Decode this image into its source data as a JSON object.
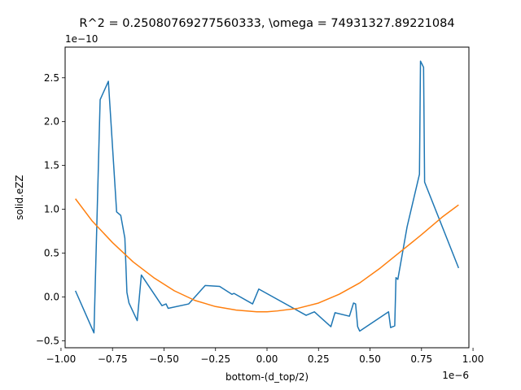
{
  "chart_data": {
    "type": "line",
    "title": "R^2 = 0.25080769277560333, \\omega = 74931327.89221084",
    "xlabel": "bottom-(d_top/2)",
    "ylabel": "solid.eZZ",
    "x_offset_label": "1e−6",
    "y_offset_label": "1e−10",
    "xlim": [
      -0.98,
      0.98
    ],
    "ylim": [
      -0.58,
      2.85
    ],
    "xticks": [
      -1.0,
      -0.75,
      -0.5,
      -0.25,
      0.0,
      0.25,
      0.5,
      0.75,
      1.0
    ],
    "xtick_labels": [
      "−1.00",
      "−0.75",
      "−0.50",
      "−0.25",
      "0.00",
      "0.25",
      "0.50",
      "0.75",
      "1.00"
    ],
    "yticks": [
      -0.5,
      0.0,
      0.5,
      1.0,
      1.5,
      2.0,
      2.5
    ],
    "ytick_labels": [
      "−0.5",
      "0.0",
      "0.5",
      "1.0",
      "1.5",
      "2.0",
      "2.5"
    ],
    "grid": false,
    "series": [
      {
        "color": "#1f77b4",
        "x": [
          -0.93,
          -0.84,
          -0.81,
          -0.77,
          -0.73,
          -0.71,
          -0.69,
          -0.68,
          -0.67,
          -0.63,
          -0.61,
          -0.51,
          -0.49,
          -0.48,
          -0.38,
          -0.3,
          -0.23,
          -0.17,
          -0.16,
          -0.07,
          -0.04,
          0.19,
          0.23,
          0.31,
          0.33,
          0.4,
          0.42,
          0.43,
          0.44,
          0.45,
          0.59,
          0.6,
          0.62,
          0.626,
          0.635,
          0.68,
          0.74,
          0.745,
          0.76,
          0.765,
          0.93
        ],
        "y": [
          0.07,
          -0.41,
          2.25,
          2.46,
          0.97,
          0.93,
          0.67,
          0.05,
          -0.07,
          -0.27,
          0.25,
          -0.1,
          -0.08,
          -0.13,
          -0.08,
          0.13,
          0.12,
          0.03,
          0.04,
          -0.08,
          0.09,
          -0.21,
          -0.17,
          -0.34,
          -0.18,
          -0.22,
          -0.07,
          -0.08,
          -0.34,
          -0.39,
          -0.17,
          -0.35,
          -0.33,
          0.22,
          0.2,
          0.8,
          1.4,
          2.69,
          2.62,
          1.31,
          0.33
        ]
      },
      {
        "color": "#ff7f0e",
        "x": [
          -0.93,
          -0.85,
          -0.75,
          -0.65,
          -0.55,
          -0.45,
          -0.35,
          -0.25,
          -0.15,
          -0.05,
          0.0,
          0.05,
          0.15,
          0.25,
          0.35,
          0.45,
          0.55,
          0.65,
          0.75,
          0.85,
          0.93
        ],
        "y": [
          1.12,
          0.87,
          0.62,
          0.4,
          0.22,
          0.07,
          -0.04,
          -0.11,
          -0.15,
          -0.17,
          -0.17,
          -0.16,
          -0.13,
          -0.07,
          0.03,
          0.16,
          0.33,
          0.52,
          0.71,
          0.91,
          1.05
        ]
      }
    ]
  }
}
